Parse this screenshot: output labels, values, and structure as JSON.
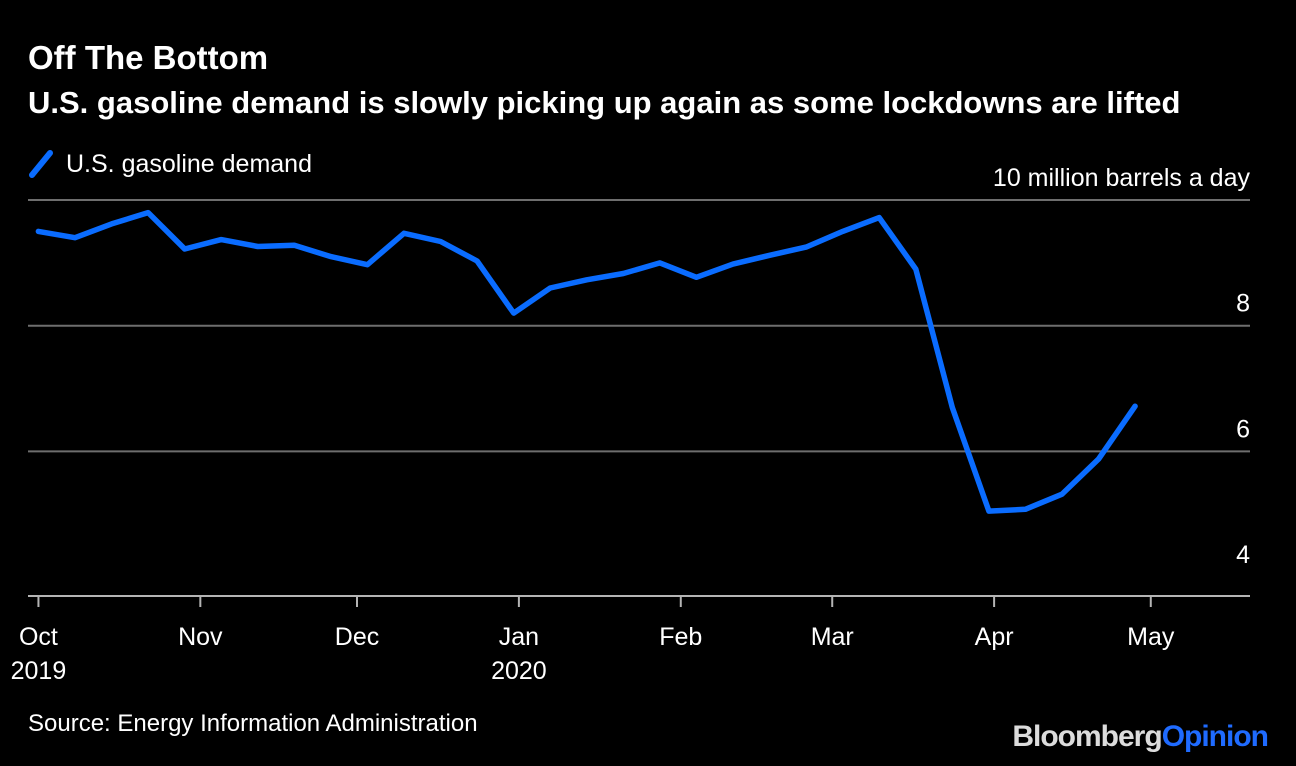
{
  "header": {
    "title": "Off The Bottom",
    "subtitle": "U.S. gasoline demand is slowly picking up again as some lockdowns are lifted"
  },
  "footer": {
    "source": "Source: Energy Information Administration",
    "brand_primary": "Bloomberg",
    "brand_secondary": "Opinion"
  },
  "colors": {
    "background": "#000000",
    "series": "#0a6cff",
    "grid": "#6e6e6e",
    "text": "#ffffff"
  },
  "chart_data": {
    "type": "line",
    "title": "Off The Bottom",
    "subtitle": "U.S. gasoline demand is slowly picking up again as some lockdowns are lifted",
    "unit_label": "10 million barrels a day",
    "ylabel": "",
    "xlabel": "",
    "ylim": [
      3.7,
      10.0
    ],
    "yticks": [
      {
        "value": 4,
        "label": "4"
      },
      {
        "value": 6,
        "label": "6"
      },
      {
        "value": 8,
        "label": "8"
      },
      {
        "value": 10,
        "label": "10 million barrels a day"
      }
    ],
    "grid": true,
    "legend_position": "top-left",
    "xlim": [
      "2019-09-29",
      "2020-05-20"
    ],
    "xticks": [
      {
        "date": "2019-10-01",
        "label": "Oct",
        "sublabel": "2019"
      },
      {
        "date": "2019-11-01",
        "label": "Nov",
        "sublabel": ""
      },
      {
        "date": "2019-12-01",
        "label": "Dec",
        "sublabel": ""
      },
      {
        "date": "2020-01-01",
        "label": "Jan",
        "sublabel": "2020"
      },
      {
        "date": "2020-02-01",
        "label": "Feb",
        "sublabel": ""
      },
      {
        "date": "2020-03-01",
        "label": "Mar",
        "sublabel": ""
      },
      {
        "date": "2020-04-01",
        "label": "Apr",
        "sublabel": ""
      },
      {
        "date": "2020-05-01",
        "label": "May",
        "sublabel": ""
      }
    ],
    "series": [
      {
        "name": "U.S. gasoline demand",
        "color": "#0a6cff",
        "points": [
          {
            "date": "2019-10-01",
            "value": 9.5
          },
          {
            "date": "2019-10-08",
            "value": 9.4
          },
          {
            "date": "2019-10-15",
            "value": 9.62
          },
          {
            "date": "2019-10-22",
            "value": 9.8
          },
          {
            "date": "2019-10-29",
            "value": 9.22
          },
          {
            "date": "2019-11-05",
            "value": 9.37
          },
          {
            "date": "2019-11-12",
            "value": 9.26
          },
          {
            "date": "2019-11-19",
            "value": 9.28
          },
          {
            "date": "2019-11-26",
            "value": 9.1
          },
          {
            "date": "2019-12-03",
            "value": 8.97
          },
          {
            "date": "2019-12-10",
            "value": 9.47
          },
          {
            "date": "2019-12-17",
            "value": 9.34
          },
          {
            "date": "2019-12-24",
            "value": 9.03
          },
          {
            "date": "2019-12-31",
            "value": 8.2
          },
          {
            "date": "2020-01-07",
            "value": 8.6
          },
          {
            "date": "2020-01-14",
            "value": 8.73
          },
          {
            "date": "2020-01-21",
            "value": 8.83
          },
          {
            "date": "2020-01-28",
            "value": 9.0
          },
          {
            "date": "2020-02-04",
            "value": 8.77
          },
          {
            "date": "2020-02-11",
            "value": 8.98
          },
          {
            "date": "2020-02-18",
            "value": 9.12
          },
          {
            "date": "2020-02-25",
            "value": 9.25
          },
          {
            "date": "2020-03-03",
            "value": 9.5
          },
          {
            "date": "2020-03-10",
            "value": 9.72
          },
          {
            "date": "2020-03-17",
            "value": 8.9
          },
          {
            "date": "2020-03-24",
            "value": 6.7
          },
          {
            "date": "2020-03-31",
            "value": 5.05
          },
          {
            "date": "2020-04-07",
            "value": 5.08
          },
          {
            "date": "2020-04-14",
            "value": 5.32
          },
          {
            "date": "2020-04-21",
            "value": 5.88
          },
          {
            "date": "2020-04-28",
            "value": 6.72
          }
        ]
      }
    ]
  }
}
